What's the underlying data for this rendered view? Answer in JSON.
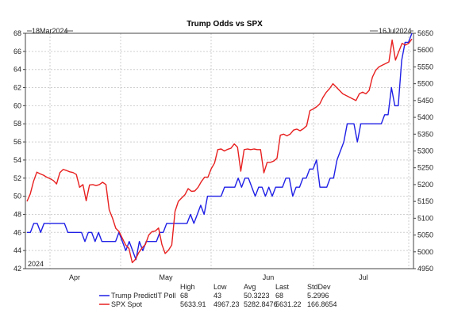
{
  "chart_data": {
    "type": "line",
    "title": "Trump Odds vs SPX",
    "start_label": "18Mar2024",
    "end_label": "16Jul2024",
    "year_label": "2024",
    "month_labels": [
      "Apr",
      "May",
      "Jun",
      "Jul"
    ],
    "left_axis": {
      "min": 42,
      "max": 68,
      "ticks": [
        42,
        44,
        46,
        48,
        50,
        52,
        54,
        56,
        58,
        60,
        62,
        64,
        66,
        68
      ]
    },
    "right_axis": {
      "min": 4950,
      "max": 5650,
      "ticks": [
        4950,
        5000,
        5050,
        5100,
        5150,
        5200,
        5250,
        5300,
        5350,
        5400,
        5450,
        5500,
        5550,
        5600,
        5650
      ]
    },
    "grid": true,
    "series": [
      {
        "name": "Trump PredictIT Poll",
        "color": "#1f1fe6",
        "axis": "left",
        "values": [
          46,
          46,
          47,
          47,
          46,
          47,
          47,
          47,
          47,
          47,
          47,
          47,
          46,
          46,
          46,
          46,
          46,
          45,
          46,
          46,
          45,
          46,
          45,
          45,
          45,
          45,
          45,
          46,
          45,
          44,
          45,
          44,
          43,
          45,
          44,
          45,
          45,
          45,
          45,
          46,
          46,
          47,
          47,
          47,
          47,
          47,
          47,
          47,
          48,
          47,
          48,
          49,
          48,
          50,
          50,
          50,
          50,
          50,
          51,
          51,
          51,
          51,
          52,
          51,
          52,
          52,
          51,
          50,
          51,
          51,
          50,
          51,
          50,
          51,
          51,
          51,
          52,
          52,
          50,
          51,
          51,
          52,
          52,
          53,
          53,
          54,
          51,
          51,
          51,
          52,
          52,
          54,
          55,
          56,
          58,
          58,
          58,
          56,
          58,
          58,
          58,
          58,
          58,
          58,
          58,
          59,
          59,
          62,
          60,
          60,
          65,
          67,
          67,
          68
        ]
      },
      {
        "name": "SPX Spot",
        "color": "#e82020",
        "axis": "right",
        "values": [
          5150,
          5172,
          5210,
          5237,
          5232,
          5228,
          5222,
          5218,
          5212,
          5202,
          5236,
          5245,
          5242,
          5238,
          5236,
          5230,
          5192,
          5200,
          5152,
          5199,
          5200,
          5197,
          5200,
          5207,
          5200,
          5125,
          5100,
          5070,
          5060,
          5040,
          5020,
          5010,
          4968,
          4978,
          4998,
          5012,
          5022,
          5050,
          5060,
          5062,
          5071,
          5022,
          4995,
          5005,
          5020,
          5120,
          5150,
          5160,
          5170,
          5188,
          5180,
          5181,
          5192,
          5209,
          5222,
          5222,
          5247,
          5264,
          5304,
          5306,
          5300,
          5305,
          5308,
          5321,
          5311,
          5240,
          5304,
          5306,
          5304,
          5306,
          5304,
          5304,
          5235,
          5266,
          5266,
          5270,
          5278,
          5347,
          5350,
          5345,
          5350,
          5362,
          5365,
          5360,
          5366,
          5375,
          5420,
          5425,
          5431,
          5440,
          5460,
          5475,
          5486,
          5500,
          5490,
          5480,
          5470,
          5465,
          5460,
          5455,
          5450,
          5470,
          5475,
          5470,
          5480,
          5520,
          5540,
          5550,
          5555,
          5560,
          5565,
          5630,
          5570,
          5595,
          5620,
          5615,
          5620,
          5633
        ]
      }
    ],
    "stats": {
      "headers": [
        "High",
        "Low",
        "Avg",
        "Last",
        "StdDev"
      ],
      "rows": [
        {
          "name": "Trump PredictIT Poll",
          "color": "#1f1fe6",
          "values": [
            "68",
            "43",
            "50.3223",
            "68",
            "5.2996"
          ]
        },
        {
          "name": "SPX Spot",
          "color": "#e82020",
          "values": [
            "5633.91",
            "4967.23",
            "5282.8476",
            "5631.22",
            "166.8654"
          ]
        }
      ]
    }
  }
}
